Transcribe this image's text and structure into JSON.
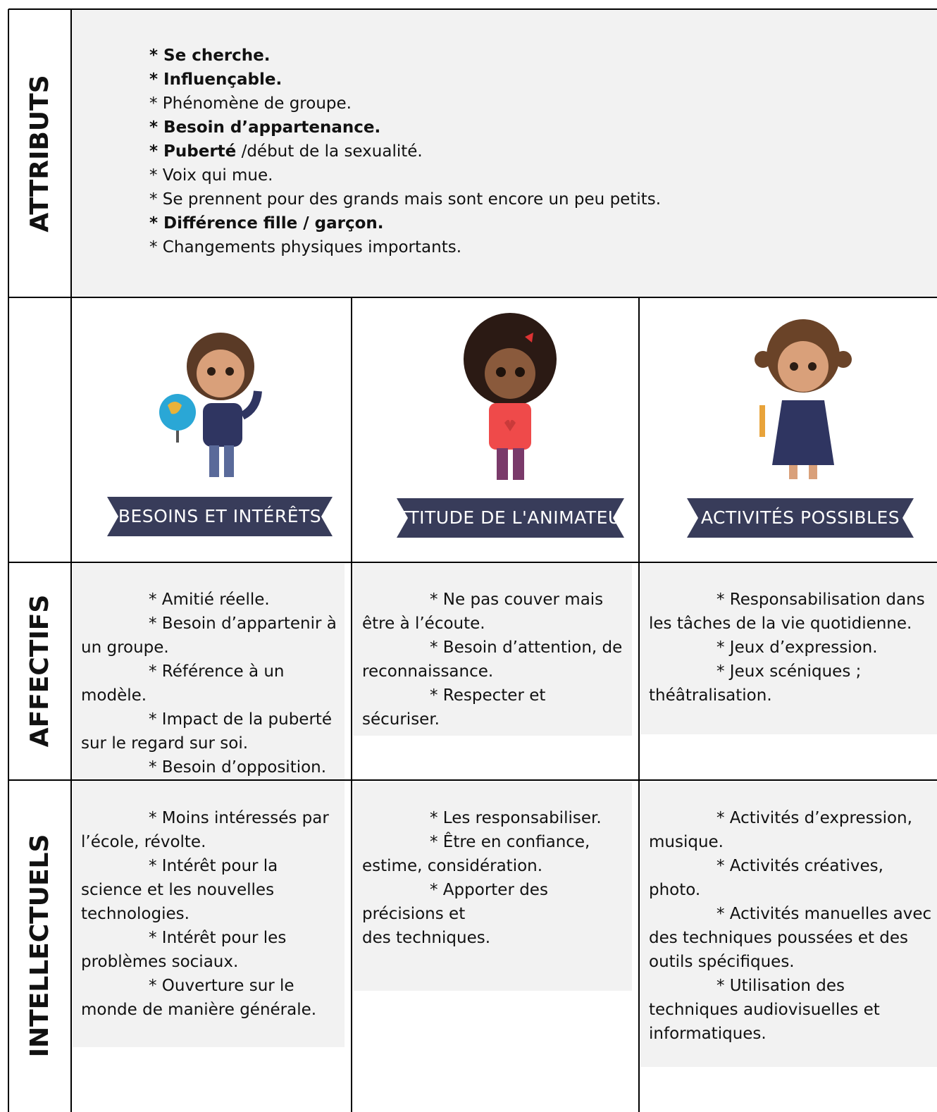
{
  "row_headers": [
    "ATTRIBUTS",
    "AFFECTIFS",
    "INTELLECTUELS"
  ],
  "attributes": [
    [
      {
        "text": "* Se cherche.",
        "bold": true
      }
    ],
    [
      {
        "text": "* Influençable.",
        "bold": true
      }
    ],
    [
      {
        "text": "* Phénomène de groupe.",
        "bold": false
      }
    ],
    [
      {
        "text": "* Besoin d’appartenance.",
        "bold": true
      }
    ],
    [
      {
        "text": "* Puberté",
        "bold": true
      },
      {
        "text": " /début de la sexualité.",
        "bold": false
      }
    ],
    [
      {
        "text": "* Voix qui mue.",
        "bold": false
      }
    ],
    [
      {
        "text": "* Se prennent pour des grands mais sont encore un peu petits.",
        "bold": false
      }
    ],
    [
      {
        "text": "* Différence fille / garçon.",
        "bold": true
      }
    ],
    [
      {
        "text": "* Changements physiques importants.",
        "bold": false
      }
    ]
  ],
  "banners": [
    "BESOINS ET INTÉRÊTS",
    "ATTITUDE DE L'ANIMATEUR",
    "ACTIVITÉS POSSIBLES"
  ],
  "affectifs": [
    [
      "* Amitié réelle.",
      "* Besoin d’appartenir à un groupe.",
      "* Référence à un modèle.",
      "* Impact de la puberté sur le regard sur soi.",
      "* Besoin d’opposition."
    ],
    [
      "* Ne pas couver mais être à l’écoute.",
      "* Besoin d’attention, de reconnaissance.",
      "* Respecter et sécuriser."
    ],
    [
      "* Responsabilisation dans les tâches de la vie quotidienne.",
      "* Jeux d’expression.",
      "* Jeux scéniques ; théâtralisation."
    ]
  ],
  "intellectuels": [
    [
      "* Moins intéressés par l’école, révolte.",
      "* Intérêt pour la science et les nouvelles technologies.",
      "* Intérêt pour les problèmes sociaux.",
      "* Ouverture sur le monde de manière générale."
    ],
    [
      "* Les responsabiliser.",
      "* Être en confiance, estime, considération.",
      "* Apporter des précisions et\ndes techniques."
    ],
    [
      "* Activités d’expression, musique.",
      "* Activités créatives, photo.",
      "* Activités manuelles avec des techniques poussées et des outils spécifiques.",
      "* Utilisation des techniques audiovisuelles et informatiques."
    ]
  ]
}
